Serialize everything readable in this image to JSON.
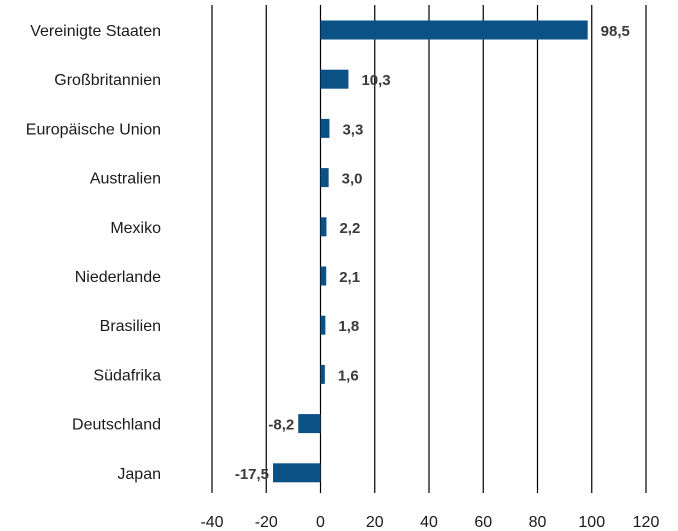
{
  "chart_data": {
    "type": "bar",
    "orientation": "horizontal",
    "title": "",
    "xlabel": "",
    "ylabel": "",
    "categories": [
      "Vereinigte Staaten",
      "Großbritannien",
      "Europäische Union",
      "Australien",
      "Mexiko",
      "Niederlande",
      "Brasilien",
      "Südafrika",
      "Deutschland",
      "Japan"
    ],
    "values": [
      98.5,
      10.3,
      3.3,
      3.0,
      2.2,
      2.1,
      1.8,
      1.6,
      -8.2,
      -17.5
    ],
    "value_labels": [
      "98,5",
      "10,3",
      "3,3",
      "3,0",
      "2,2",
      "2,1",
      "1,8",
      "1,6",
      "-8,2",
      "-17,5"
    ],
    "xlim": [
      -40,
      120
    ],
    "xticks": [
      -40,
      -20,
      0,
      20,
      40,
      60,
      80,
      100,
      120
    ],
    "xtick_labels": [
      "-40",
      "-20",
      "0",
      "20",
      "40",
      "60",
      "80",
      "100",
      "120"
    ],
    "grid": "vertical",
    "bar_color": "#0a5186",
    "grid_color": "#000000"
  }
}
